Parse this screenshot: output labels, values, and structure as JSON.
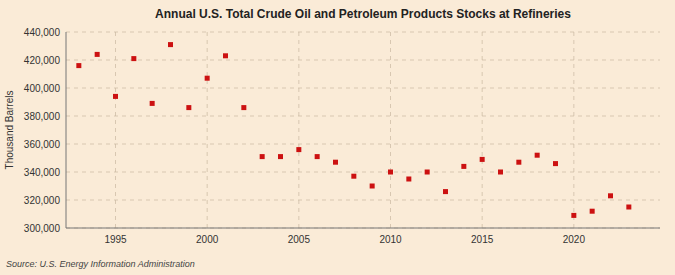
{
  "chart_data": {
    "type": "scatter",
    "title": "Annual U.S. Total Crude Oil and Petroleum Products Stocks at Refineries",
    "y_label": "Thousand Barrels",
    "annotations": [
      "Source: U.S. Energy Information Administration"
    ],
    "x": [
      1993,
      1994,
      1995,
      1996,
      1997,
      1998,
      1999,
      2000,
      2001,
      2002,
      2003,
      2004,
      2005,
      2006,
      2007,
      2008,
      2009,
      2010,
      2011,
      2012,
      2013,
      2014,
      2015,
      2016,
      2017,
      2018,
      2019,
      2020,
      2021,
      2022,
      2023
    ],
    "values": [
      416000,
      424000,
      394000,
      421000,
      389000,
      431000,
      386000,
      407000,
      423000,
      386000,
      351000,
      351000,
      356000,
      351000,
      347000,
      337000,
      330000,
      340000,
      335000,
      340000,
      326000,
      344000,
      349000,
      340000,
      347000,
      352000,
      346000,
      309000,
      312000,
      323000,
      315000
    ],
    "color": "#cc1111",
    "marker": "square",
    "xlim": [
      1992.3,
      2024.7
    ],
    "xticks": [
      1995,
      2000,
      2005,
      2010,
      2015,
      2020
    ],
    "ylim": [
      300000,
      440001
    ],
    "yticks": [
      {
        "value": 300000,
        "label": "300,000"
      },
      {
        "value": 320000,
        "label": "320,000"
      },
      {
        "value": 340000,
        "label": "340,000"
      },
      {
        "value": 360000,
        "label": "360,000"
      },
      {
        "value": 380000,
        "label": "380,000"
      },
      {
        "value": 400000,
        "label": "400,000"
      },
      {
        "value": 420000,
        "label": "420,000"
      },
      {
        "value": 440000,
        "label": "440,000"
      }
    ],
    "grid": true
  }
}
